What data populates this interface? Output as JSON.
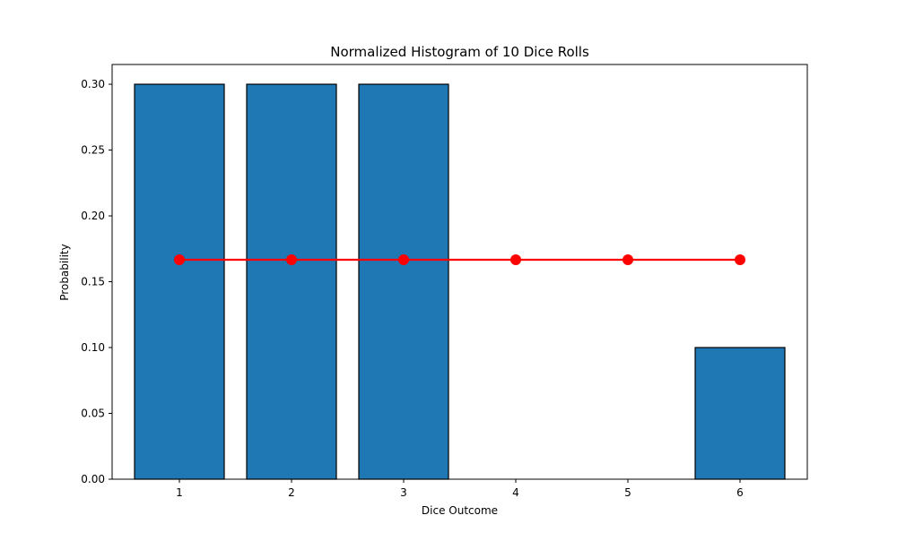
{
  "chart_data": {
    "type": "bar",
    "title": "Normalized Histogram of 10 Dice Rolls",
    "xlabel": "Dice Outcome",
    "ylabel": "Probability",
    "categories": [
      "1",
      "2",
      "3",
      "4",
      "5",
      "6"
    ],
    "x": [
      1,
      2,
      3,
      4,
      5,
      6
    ],
    "values": [
      0.3,
      0.3,
      0.3,
      0.0,
      0.0,
      0.1
    ],
    "expected_line": {
      "type": "line",
      "x": [
        1,
        2,
        3,
        4,
        5,
        6
      ],
      "values": [
        0.1667,
        0.1667,
        0.1667,
        0.1667,
        0.1667,
        0.1667
      ]
    },
    "xlim": [
      0.4,
      6.6
    ],
    "ylim": [
      0,
      0.315
    ],
    "yticks": [
      0.0,
      0.05,
      0.1,
      0.15,
      0.2,
      0.25,
      0.3
    ],
    "ytick_labels": [
      "0.00",
      "0.05",
      "0.10",
      "0.15",
      "0.20",
      "0.25",
      "0.30"
    ],
    "xtick_labels": [
      "1",
      "2",
      "3",
      "4",
      "5",
      "6"
    ],
    "grid": false,
    "colors": {
      "bar": "#1f77b4",
      "bar_edge": "#000000",
      "line": "#ff0000",
      "marker": "#ff0000"
    }
  }
}
